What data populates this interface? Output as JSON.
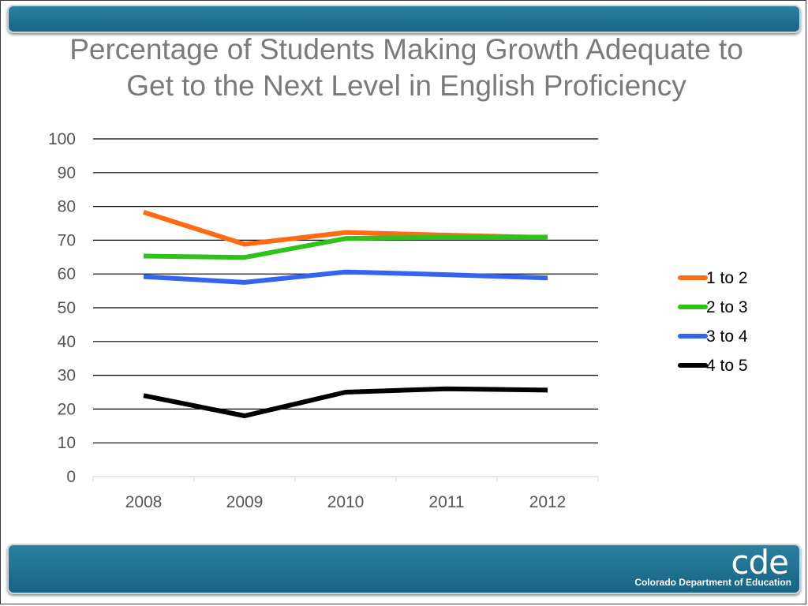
{
  "slide": {
    "title_line1": "Percentage of Students Making Growth Adequate to",
    "title_line2": "Get to the Next Level in English Proficiency"
  },
  "footer": {
    "logo_mark": "cde",
    "org_name": "Colorado Department of Education"
  },
  "colors": {
    "bar": "#1f7395",
    "title": "#7a7a7a",
    "grid": "#000000"
  },
  "chart_data": {
    "type": "line",
    "title": "",
    "xlabel": "",
    "ylabel": "",
    "categories": [
      "2008",
      "2009",
      "2010",
      "2011",
      "2012"
    ],
    "ylim": [
      0,
      100
    ],
    "yticks": [
      0,
      10,
      20,
      30,
      40,
      50,
      60,
      70,
      80,
      90,
      100
    ],
    "grid": true,
    "legend_position": "right",
    "series": [
      {
        "name": "1 to 2",
        "color": "#ff6a13",
        "values": [
          78.3,
          68.8,
          72.3,
          71.5,
          70.8
        ]
      },
      {
        "name": "2 to 3",
        "color": "#2ec21a",
        "values": [
          65.3,
          64.9,
          70.5,
          70.9,
          70.9
        ]
      },
      {
        "name": "3 to 4",
        "color": "#3366ee",
        "values": [
          59.2,
          57.5,
          60.6,
          59.8,
          58.8
        ]
      },
      {
        "name": "4 to 5",
        "color": "#000000",
        "values": [
          24.0,
          18.0,
          25.0,
          26.0,
          25.6
        ]
      }
    ]
  }
}
